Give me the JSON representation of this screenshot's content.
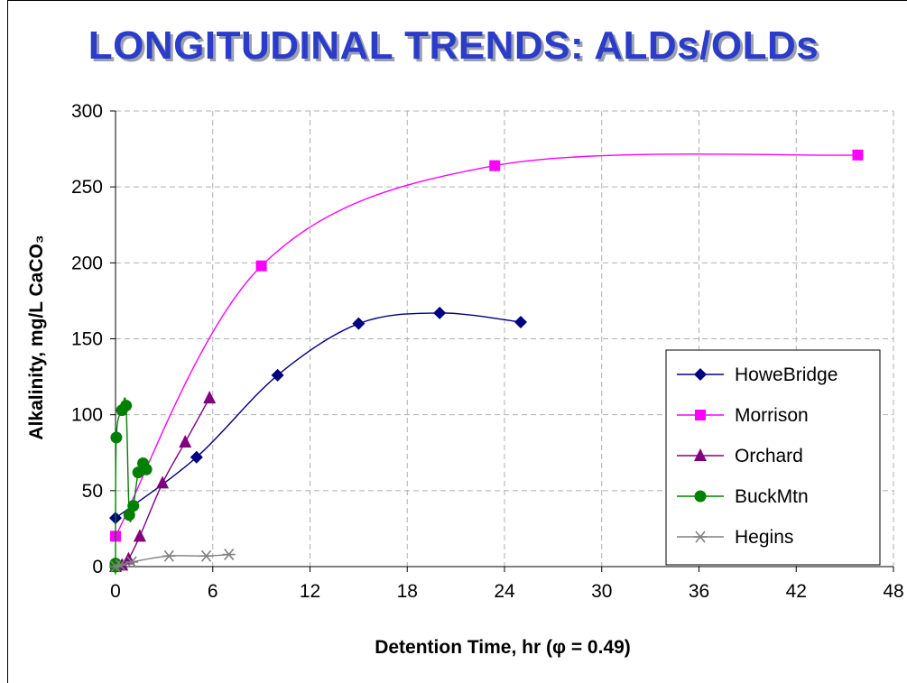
{
  "page": {
    "title": "LONGITUDINAL TRENDS:  ALDs/OLDs"
  },
  "chart_data": {
    "type": "line",
    "xlabel": "Detention Time, hr (φ = 0.49)",
    "ylabel": "Alkalinity, mg/L CaCO₃",
    "xlim": [
      0,
      48
    ],
    "ylim": [
      0,
      300
    ],
    "xticks": [
      0,
      6,
      12,
      18,
      24,
      30,
      36,
      42,
      48
    ],
    "yticks": [
      0,
      50,
      100,
      150,
      200,
      250,
      300
    ],
    "grid": true,
    "legend_position": "right",
    "series": [
      {
        "name": "HoweBridge",
        "color": "#000080",
        "marker": "diamond",
        "x": [
          0,
          5,
          10,
          15,
          20,
          25
        ],
        "y": [
          32,
          72,
          126,
          160,
          167,
          161
        ]
      },
      {
        "name": "Morrison",
        "color": "#ff00ff",
        "marker": "square",
        "x": [
          0,
          9,
          23.4,
          45.8
        ],
        "y": [
          20,
          198,
          264,
          271
        ]
      },
      {
        "name": "Orchard",
        "color": "#800080",
        "marker": "triangle",
        "x": [
          0,
          0.4,
          0.8,
          1.5,
          2.9,
          4.3,
          5.8
        ],
        "y": [
          0,
          1,
          5,
          20,
          55,
          82,
          111
        ]
      },
      {
        "name": "BuckMtn",
        "color": "#008000",
        "marker": "circle",
        "x": [
          0,
          0,
          0.05,
          0.4,
          0.65,
          0.85,
          1.1,
          1.4,
          1.7,
          1.9
        ],
        "y": [
          0,
          2,
          85,
          103,
          106,
          34,
          40,
          62,
          68,
          64
        ]
      },
      {
        "name": "Hegins",
        "color": "#808080",
        "marker": "asterisk",
        "x": [
          0,
          0.3,
          1,
          3.3,
          5.6,
          7
        ],
        "y": [
          0,
          1,
          3,
          7,
          7,
          8
        ]
      }
    ]
  }
}
